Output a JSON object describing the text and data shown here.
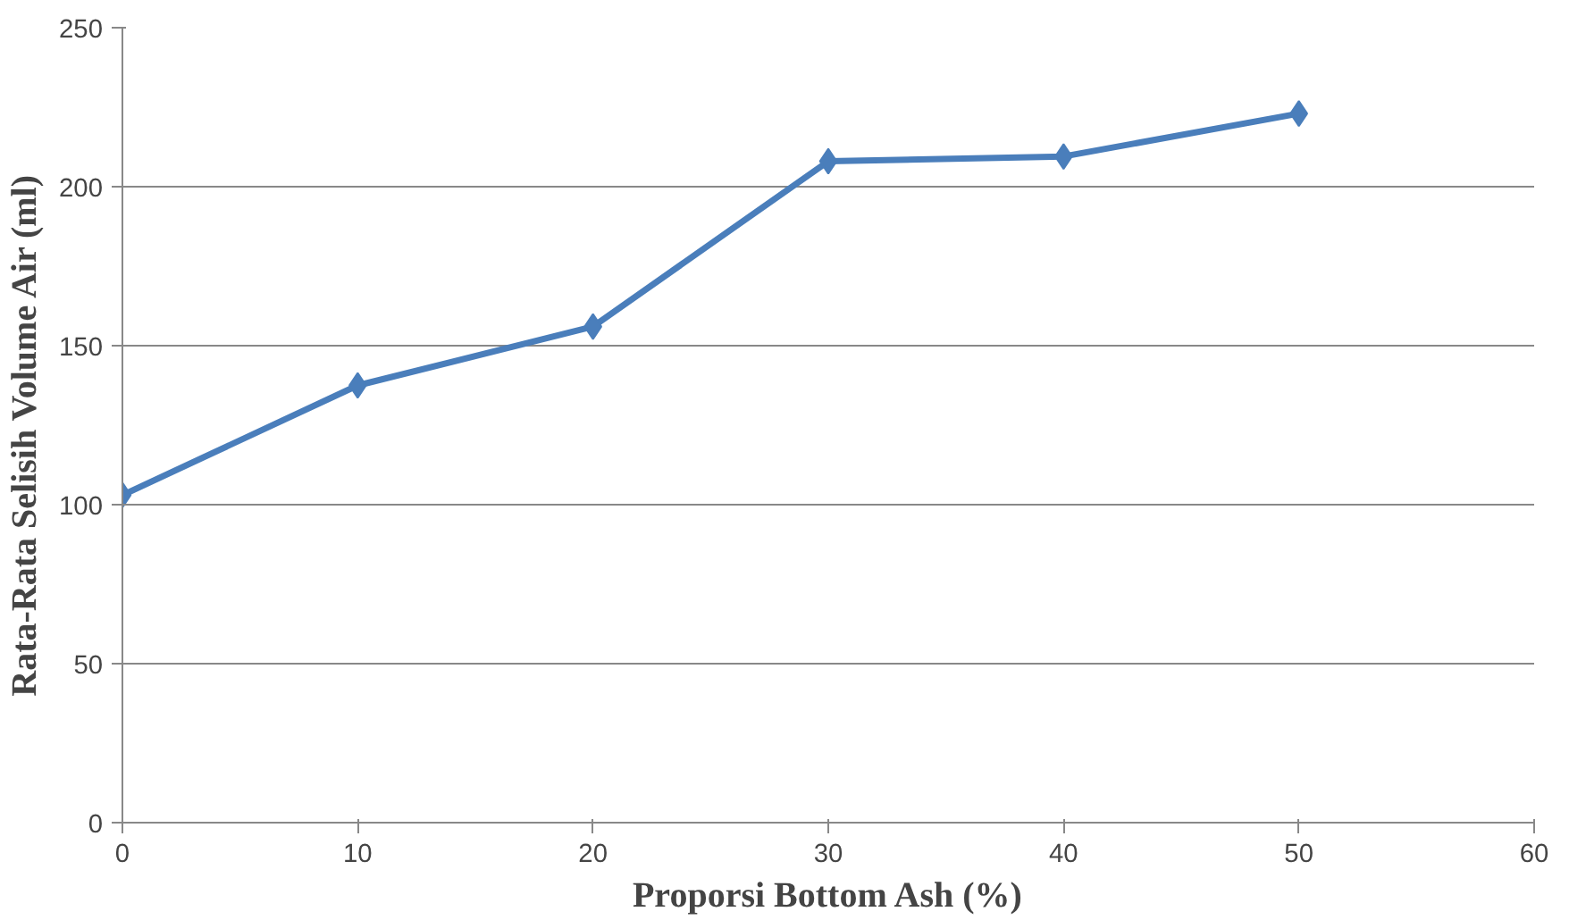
{
  "chart_data": {
    "type": "line",
    "xlabel": "Proporsi Bottom Ash (%)",
    "ylabel": "Rata-Rata Selisih  Volume Air  (ml)",
    "x": [
      0,
      10,
      20,
      30,
      40,
      50
    ],
    "series": [
      {
        "color": "#4a7ebb",
        "values": [
          103,
          137.5,
          156,
          208,
          209.5,
          223
        ]
      }
    ],
    "xlim": [
      0,
      60
    ],
    "xticks": [
      0,
      10,
      20,
      30,
      40,
      50,
      60
    ],
    "ylim": [
      0,
      250
    ],
    "yticks": [
      0,
      50,
      100,
      150,
      200,
      250
    ],
    "grid": "y",
    "marker": "diamond",
    "line_style": "solid"
  }
}
